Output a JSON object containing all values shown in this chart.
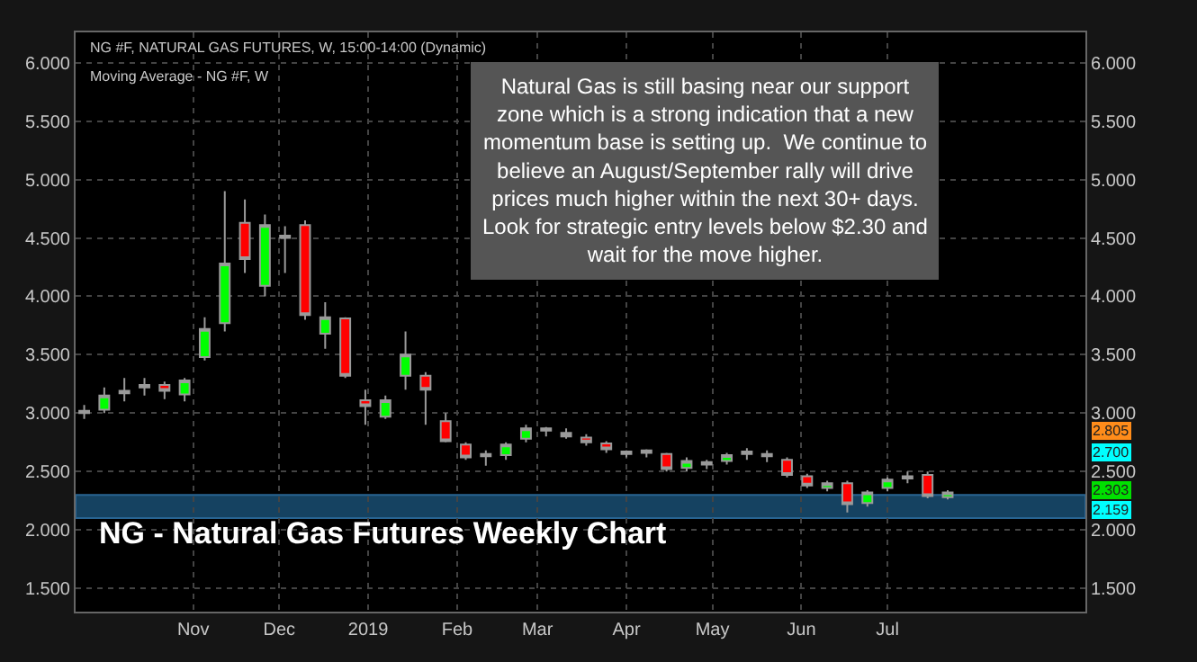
{
  "chart_data": {
    "type": "candlestick",
    "title": "NG - Natural Gas Futures Weekly Chart",
    "annotations": [
      "NG #F, NATURAL GAS FUTURES, W, 15:00-14:00 (Dynamic)",
      "Moving Average - NG #F, W",
      "Natural Gas is still basing near our support zone which is a strong indication that a new momentum base is setting up.  We continue to believe an August/September rally will drive prices much higher within the next 30+ days. Look for strategic entry levels below $2.30 and wait for the move higher.",
      "2.805",
      "2.700",
      "2.303",
      "2.159"
    ],
    "x": [
      "2018-09-24",
      "2018-10-01",
      "2018-10-08",
      "2018-10-15",
      "2018-10-22",
      "2018-10-29",
      "2018-11-05",
      "2018-11-12",
      "2018-11-19",
      "2018-11-26",
      "2018-12-03",
      "2018-12-10",
      "2018-12-17",
      "2018-12-24",
      "2018-12-31",
      "2019-01-07",
      "2019-01-14",
      "2019-01-21",
      "2019-01-28",
      "2019-02-04",
      "2019-02-11",
      "2019-02-18",
      "2019-02-25",
      "2019-03-04",
      "2019-03-11",
      "2019-03-18",
      "2019-03-25",
      "2019-04-01",
      "2019-04-08",
      "2019-04-15",
      "2019-04-22",
      "2019-04-29",
      "2019-05-06",
      "2019-05-13",
      "2019-05-20",
      "2019-05-27",
      "2019-06-03",
      "2019-06-10",
      "2019-06-17",
      "2019-06-24",
      "2019-07-01",
      "2019-07-08",
      "2019-07-15",
      "2019-07-22"
    ],
    "ohlc": [
      [
        3.0,
        3.07,
        2.95,
        3.02
      ],
      [
        3.03,
        3.22,
        3.0,
        3.15
      ],
      [
        3.17,
        3.3,
        3.1,
        3.19
      ],
      [
        3.22,
        3.3,
        3.15,
        3.24
      ],
      [
        3.24,
        3.27,
        3.12,
        3.19
      ],
      [
        3.16,
        3.3,
        3.1,
        3.28
      ],
      [
        3.48,
        3.82,
        3.45,
        3.72
      ],
      [
        3.77,
        4.9,
        3.7,
        4.28
      ],
      [
        4.63,
        4.83,
        4.2,
        4.32
      ],
      [
        4.09,
        4.7,
        4.0,
        4.61
      ],
      [
        4.5,
        4.6,
        4.2,
        4.52
      ],
      [
        4.61,
        4.65,
        3.8,
        3.84
      ],
      [
        3.68,
        3.95,
        3.55,
        3.82
      ],
      [
        3.81,
        3.82,
        3.3,
        3.32
      ],
      [
        3.11,
        3.2,
        2.9,
        3.06
      ],
      [
        2.97,
        3.15,
        2.95,
        3.11
      ],
      [
        3.32,
        3.7,
        3.2,
        3.5
      ],
      [
        3.32,
        3.35,
        2.9,
        3.2
      ],
      [
        2.93,
        3.0,
        2.75,
        2.76
      ],
      [
        2.73,
        2.75,
        2.6,
        2.62
      ],
      [
        2.63,
        2.68,
        2.55,
        2.65
      ],
      [
        2.64,
        2.75,
        2.6,
        2.73
      ],
      [
        2.78,
        2.9,
        2.75,
        2.87
      ],
      [
        2.85,
        2.88,
        2.8,
        2.87
      ],
      [
        2.83,
        2.87,
        2.78,
        2.8
      ],
      [
        2.79,
        2.82,
        2.72,
        2.75
      ],
      [
        2.74,
        2.76,
        2.66,
        2.69
      ],
      [
        2.65,
        2.68,
        2.62,
        2.67
      ],
      [
        2.66,
        2.69,
        2.62,
        2.68
      ],
      [
        2.65,
        2.66,
        2.5,
        2.52
      ],
      [
        2.53,
        2.62,
        2.5,
        2.59
      ],
      [
        2.56,
        2.6,
        2.52,
        2.58
      ],
      [
        2.59,
        2.66,
        2.56,
        2.64
      ],
      [
        2.65,
        2.7,
        2.6,
        2.67
      ],
      [
        2.63,
        2.68,
        2.58,
        2.65
      ],
      [
        2.6,
        2.62,
        2.45,
        2.47
      ],
      [
        2.46,
        2.48,
        2.36,
        2.38
      ],
      [
        2.36,
        2.42,
        2.33,
        2.4
      ],
      [
        2.4,
        2.42,
        2.15,
        2.22
      ],
      [
        2.23,
        2.34,
        2.2,
        2.32
      ],
      [
        2.36,
        2.45,
        2.33,
        2.43
      ],
      [
        2.44,
        2.5,
        2.4,
        2.46
      ],
      [
        2.47,
        2.5,
        2.27,
        2.29
      ],
      [
        2.28,
        2.34,
        2.26,
        2.32
      ]
    ],
    "colors": [
      "#00ff00",
      "#00ff00",
      "#9a9a9a",
      "#9a9a9a",
      "#ff0000",
      "#00ff00",
      "#00ff00",
      "#00ff00",
      "#ff0000",
      "#00ff00",
      "#9a9a9a",
      "#ff0000",
      "#00ff00",
      "#ff0000",
      "#ff0000",
      "#00ff00",
      "#00ff00",
      "#ff0000",
      "#ff0000",
      "#ff0000",
      "#9a9a9a",
      "#00ff00",
      "#00ff00",
      "#9a9a9a",
      "#ff0000",
      "#ff0000",
      "#ff0000",
      "#9a9a9a",
      "#9a9a9a",
      "#ff0000",
      "#00ff00",
      "#9a9a9a",
      "#00ff00",
      "#9a9a9a",
      "#9a9a9a",
      "#ff0000",
      "#ff0000",
      "#00ff00",
      "#ff0000",
      "#00ff00",
      "#00ff00",
      "#9a9a9a",
      "#ff0000",
      "#00ff00"
    ],
    "xlim": [
      "2018-09-21",
      "2019-09-08"
    ],
    "xticks": [
      {
        "value": "2018-11-01",
        "label": "Nov"
      },
      {
        "value": "2018-12-01",
        "label": "Dec"
      },
      {
        "value": "2019-01-01",
        "label": "2019"
      },
      {
        "value": "2019-02-01",
        "label": "Feb"
      },
      {
        "value": "2019-03-01",
        "label": "Mar"
      },
      {
        "value": "2019-04-01",
        "label": "Apr"
      },
      {
        "value": "2019-05-01",
        "label": "May"
      },
      {
        "value": "2019-06-01",
        "label": "Jun"
      },
      {
        "value": "2019-07-01",
        "label": "Jul"
      }
    ],
    "ylim": [
      1.3,
      6.26
    ],
    "yticks": [
      {
        "value": 1.5,
        "label": "1.500"
      },
      {
        "value": 2.0,
        "label": "2.000"
      },
      {
        "value": 2.5,
        "label": "2.500"
      },
      {
        "value": 3.0,
        "label": "3.000"
      },
      {
        "value": 3.5,
        "label": "3.500"
      },
      {
        "value": 4.0,
        "label": "4.000"
      },
      {
        "value": 4.5,
        "label": "4.500"
      },
      {
        "value": 5.0,
        "label": "5.000"
      },
      {
        "value": 5.5,
        "label": "5.500"
      },
      {
        "value": 6.0,
        "label": "6.000"
      }
    ],
    "y2lim": [
      1.3,
      6.26
    ],
    "y2ticks": [
      {
        "value": 1.5,
        "label": "1.500"
      },
      {
        "value": 2.0,
        "label": "2.000"
      },
      {
        "value": 2.5,
        "label": "2.500"
      },
      {
        "value": 3.0,
        "label": "3.000"
      },
      {
        "value": 3.5,
        "label": "3.500"
      },
      {
        "value": 4.0,
        "label": "4.000"
      },
      {
        "value": 4.5,
        "label": "4.500"
      },
      {
        "value": 5.0,
        "label": "5.000"
      },
      {
        "value": 5.5,
        "label": "5.500"
      },
      {
        "value": 6.0,
        "label": "6.000"
      }
    ],
    "bands": [
      {
        "axis": "y",
        "from": 2.1,
        "to": 2.3,
        "color": "#1f5f8b"
      }
    ],
    "grid": true
  }
}
